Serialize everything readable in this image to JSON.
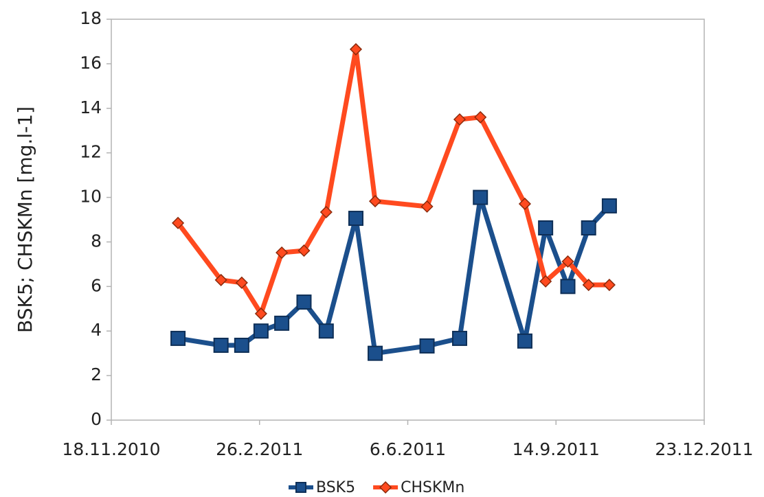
{
  "chart_data": {
    "type": "line",
    "y_label": "BSK5; CHSKMn [mg.l-1]",
    "x": [
      "2.1.2011",
      "31.1.2011",
      "14.2.2011",
      "27.2.2011",
      "13.3.2011",
      "28.3.2011",
      "12.4.2011",
      "2.5.2011",
      "15.5.2011",
      "19.6.2011",
      "11.7.2011",
      "25.7.2011",
      "24.8.2011",
      "7.9.2011",
      "22.9.2011",
      "6.10.2011",
      "20.10.2011"
    ],
    "series": [
      {
        "name": "BSK5",
        "color": "#1b4f8c",
        "marker": "square",
        "values": [
          3.67,
          3.36,
          3.36,
          4.0,
          4.35,
          5.3,
          4.0,
          9.06,
          3.0,
          3.33,
          3.67,
          10.0,
          3.55,
          8.63,
          6.0,
          8.63,
          9.62
        ]
      },
      {
        "name": "CHSKMn",
        "color": "#ff4a1f",
        "marker": "diamond",
        "values": [
          8.85,
          6.29,
          6.17,
          4.78,
          7.52,
          7.61,
          9.34,
          16.65,
          9.83,
          9.59,
          13.5,
          13.6,
          9.71,
          6.23,
          7.12,
          6.07,
          6.07
        ]
      }
    ],
    "xlim": [
      "18.11.2010",
      "23.12.2011"
    ],
    "xticks": [
      "18.11.2010",
      "26.2.2011",
      "6.6.2011",
      "14.9.2011",
      "23.12.2011"
    ],
    "ylim": [
      0,
      18
    ],
    "yticks": [
      0,
      2,
      4,
      6,
      8,
      10,
      12,
      14,
      16,
      18
    ],
    "grid": false,
    "legend": "bottom"
  }
}
